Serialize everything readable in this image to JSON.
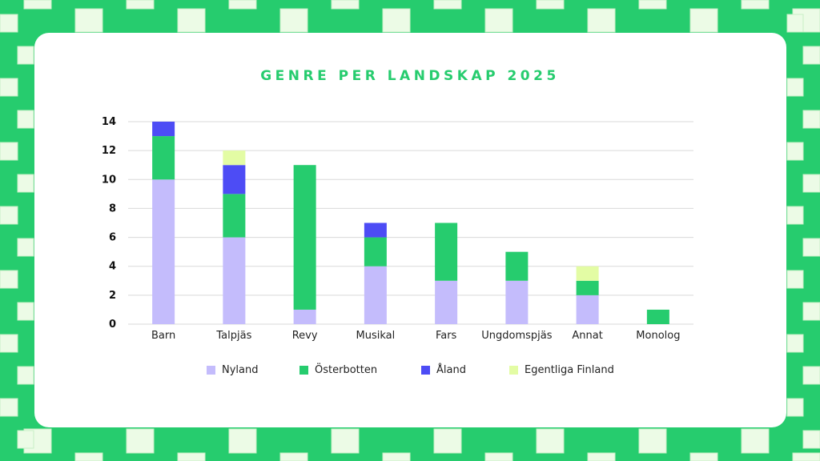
{
  "colors": {
    "frame_green": "#26cc6e",
    "frame_light": "#ecfbe6",
    "card": "#ffffff",
    "title": "#26cc6e",
    "grid": "#d9d9d9"
  },
  "chart_data": {
    "type": "bar",
    "stacked": true,
    "title": "GENRE PER LANDSKAP 2025",
    "xlabel": "",
    "ylabel": "",
    "ylim": [
      0,
      14
    ],
    "yticks": [
      0,
      2,
      4,
      6,
      8,
      10,
      12,
      14
    ],
    "grid": true,
    "legend_position": "bottom",
    "categories": [
      "Barn",
      "Talpjäs",
      "Revy",
      "Musikal",
      "Fars",
      "Ungdomspjäs",
      "Annat",
      "Monolog"
    ],
    "series": [
      {
        "name": "Nyland",
        "color": "#c4bcfc",
        "values": [
          10,
          6,
          1,
          4,
          3,
          3,
          2,
          0
        ]
      },
      {
        "name": "Österbotten",
        "color": "#26cc6e",
        "values": [
          3,
          3,
          10,
          2,
          4,
          2,
          1,
          1
        ]
      },
      {
        "name": "Åland",
        "color": "#4d4cf5",
        "values": [
          1,
          2,
          0,
          1,
          0,
          0,
          0,
          0
        ]
      },
      {
        "name": "Egentliga Finland",
        "color": "#e3fca4",
        "values": [
          0,
          1,
          0,
          0,
          0,
          0,
          1,
          0
        ]
      }
    ]
  }
}
